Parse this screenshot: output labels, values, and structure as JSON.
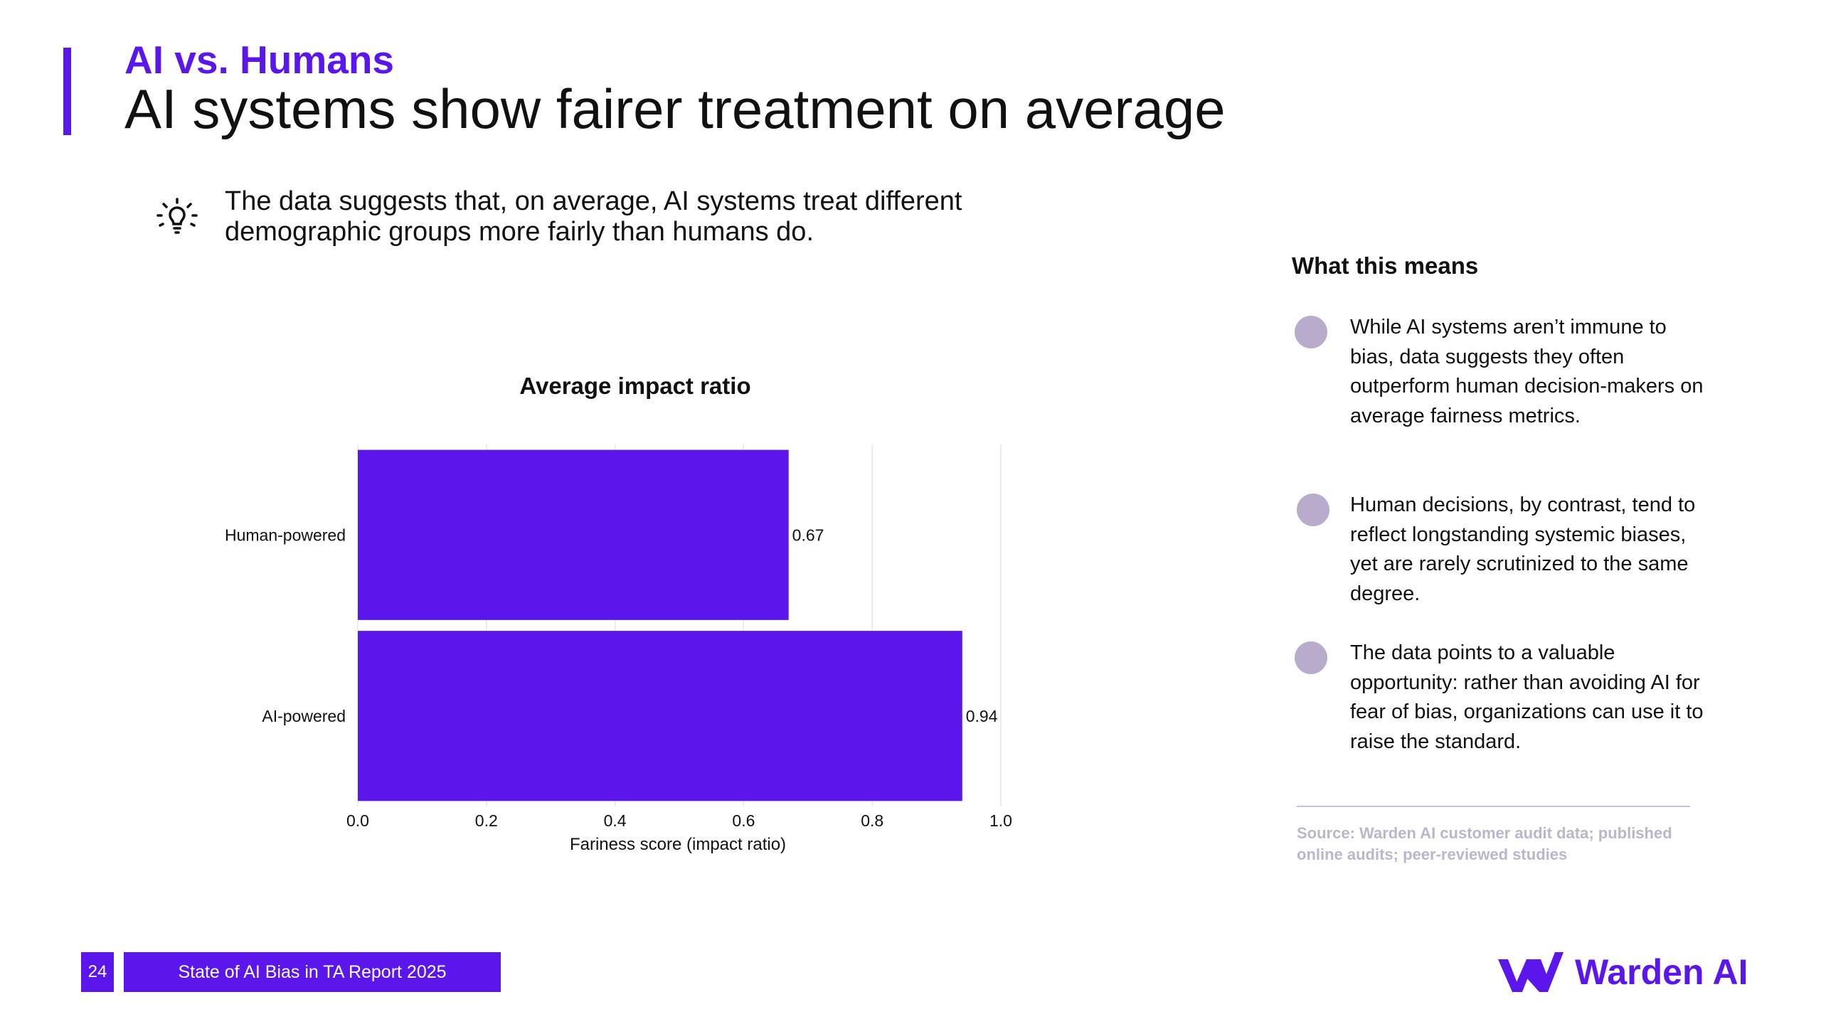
{
  "header": {
    "kicker": "AI vs. Humans",
    "title": "AI systems show fairer treatment on average"
  },
  "insight": {
    "icon": "lightbulb-icon",
    "text": "The data suggests that, on average, AI systems treat different demographic groups more fairly than humans do."
  },
  "chart_data": {
    "type": "bar",
    "orientation": "horizontal",
    "title": "Average impact ratio",
    "categories": [
      "Human-powered",
      "AI-powered"
    ],
    "values": [
      0.67,
      0.94
    ],
    "value_labels": [
      "0.67",
      "0.94"
    ],
    "xlabel": "Fariness score (impact ratio)",
    "ylabel": "",
    "xlim": [
      0.0,
      1.0
    ],
    "xticks": [
      0.0,
      0.2,
      0.4,
      0.6,
      0.8,
      1.0
    ],
    "xtick_labels": [
      "0.0",
      "0.2",
      "0.4",
      "0.6",
      "0.8",
      "1.0"
    ],
    "grid": true,
    "bar_color": "#5B17EB"
  },
  "sidebar": {
    "heading": "What this means",
    "bullets": [
      {
        "text": "While AI systems aren’t immune to bias, data suggests they often outperform human decision-makers on average fairness metrics."
      },
      {
        "text": "Human decisions, by contrast, tend to reflect longstanding systemic biases, yet are rarely scrutinized to the same degree."
      },
      {
        "text": "The data points to a valuable opportunity: rather than avoiding AI for fear of bias, organizations can use it to raise the standard."
      }
    ],
    "source": "Source: Warden AI customer audit data; published online audits; peer-reviewed studies"
  },
  "footer": {
    "page_number": "24",
    "report_title": "State of AI Bias in TA Report 2025",
    "brand": "Warden AI"
  },
  "colors": {
    "accent": "#5B17EB",
    "bullet_dot": "#B8ABCC",
    "source_text": "#BDB5CC"
  }
}
